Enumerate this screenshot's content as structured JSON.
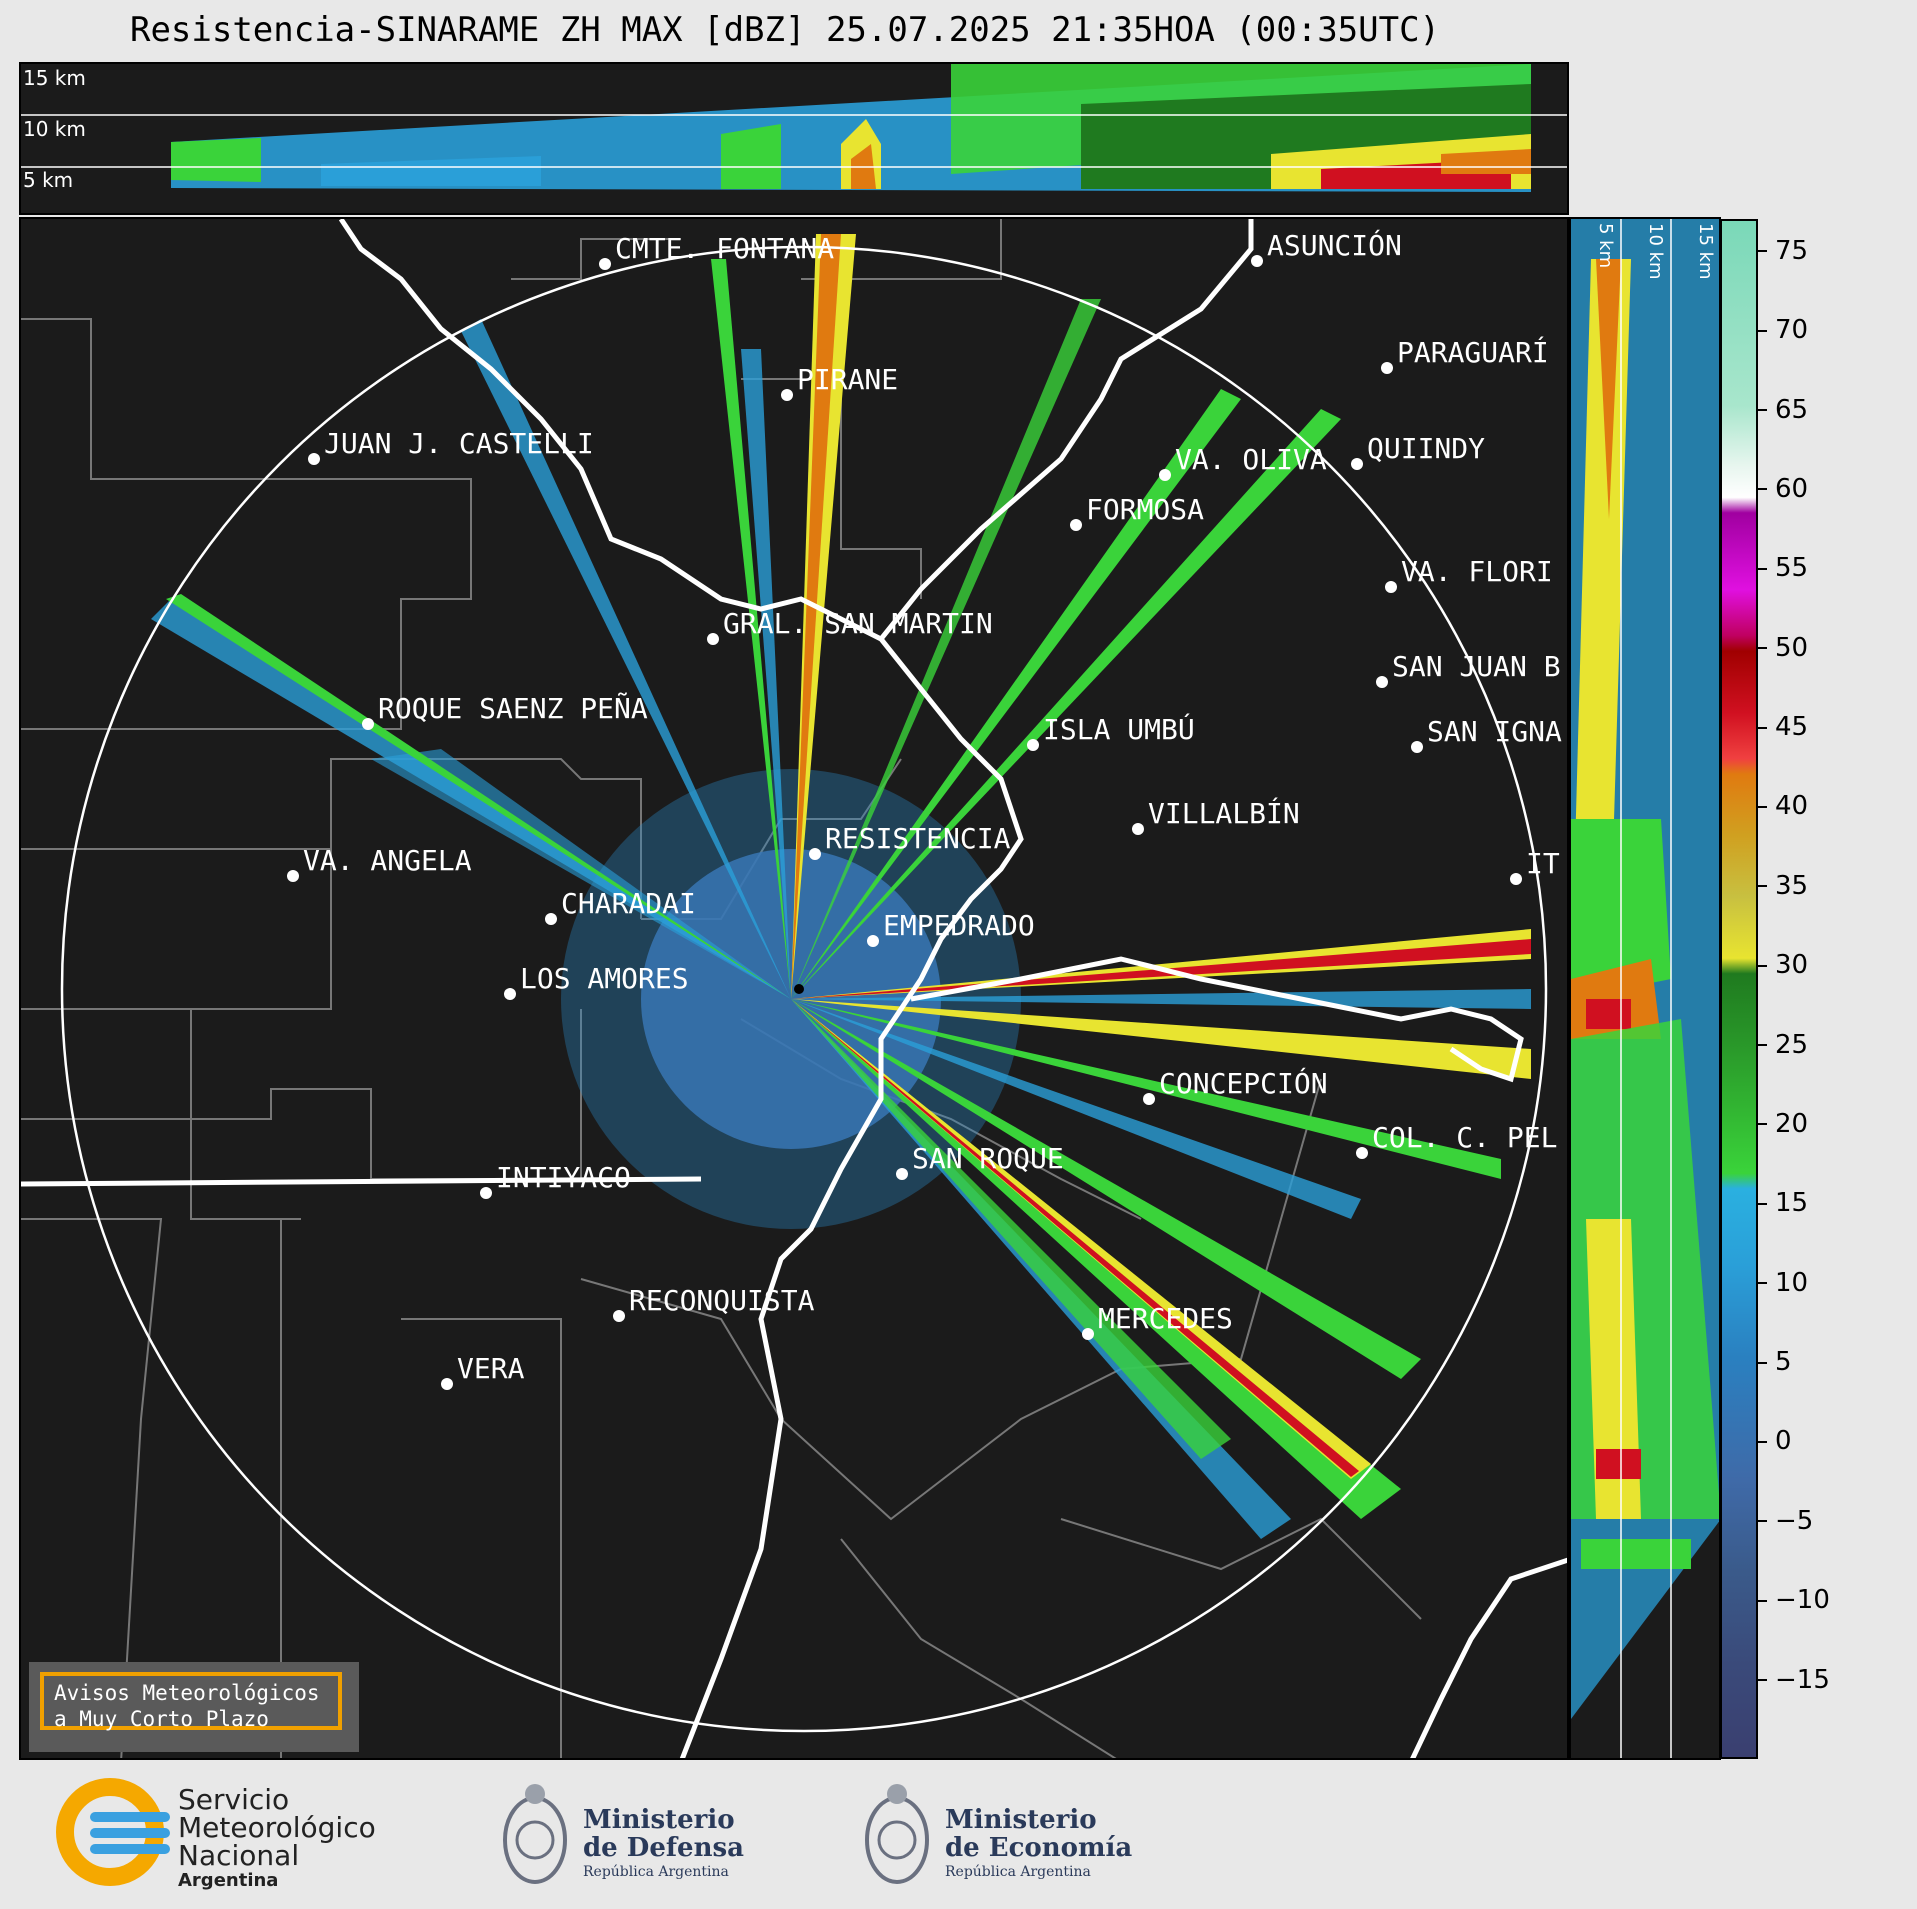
{
  "title": "Resistencia-SINARAME ZH MAX [dBZ] 25.07.2025 21:35HOA (00:35UTC)",
  "top_panel": {
    "height_labels": [
      "15 km",
      "10 km",
      "5 km"
    ]
  },
  "side_panel": {
    "height_labels": [
      "5 km",
      "10 km",
      "15 km"
    ]
  },
  "colorbar": {
    "unit": "dBZ",
    "ticks": [
      "75",
      "70",
      "65",
      "60",
      "55",
      "50",
      "45",
      "40",
      "35",
      "30",
      "25",
      "20",
      "15",
      "10",
      "5",
      "0",
      "−5",
      "−10",
      "−15"
    ],
    "range": [
      -20,
      77
    ],
    "colors": {
      "low": "#3a3f70",
      "blue": "#2a9fd8",
      "green": "#3ad33a",
      "dark_green": "#1f7a1f",
      "yellow": "#e8e430",
      "orange": "#e07a10",
      "red": "#d01020",
      "magenta": "#e010e0",
      "white": "#ffffff",
      "teal": "#7ad8b8"
    }
  },
  "places": [
    {
      "name": "CMTE. FONTANA"
    },
    {
      "name": "ASUNCIÓN"
    },
    {
      "name": "PARAGUARÍ"
    },
    {
      "name": "PIRANE"
    },
    {
      "name": "JUAN J. CASTELLI"
    },
    {
      "name": "VA. OLIVA"
    },
    {
      "name": "QUIINDY"
    },
    {
      "name": "FORMOSA"
    },
    {
      "name": "VA. FLORI"
    },
    {
      "name": "GRAL. SAN MARTIN"
    },
    {
      "name": "SAN JUAN B"
    },
    {
      "name": "ROQUE SAENZ PEÑA"
    },
    {
      "name": "SAN IGNA"
    },
    {
      "name": "ISLA UMBÚ"
    },
    {
      "name": "VILLALBÍN"
    },
    {
      "name": "RESISTENCIA"
    },
    {
      "name": "VA. ANGELA"
    },
    {
      "name": "CHARADAI"
    },
    {
      "name": "IT"
    },
    {
      "name": "EMPEDRADO"
    },
    {
      "name": "LOS AMORES"
    },
    {
      "name": "CONCEPCIÓN"
    },
    {
      "name": "COL. C. PEL"
    },
    {
      "name": "SAN ROQUE"
    },
    {
      "name": "INTIYACO"
    },
    {
      "name": "RECONQUISTA"
    },
    {
      "name": "MERCEDES"
    },
    {
      "name": "VERA"
    }
  ],
  "aviso": {
    "line1": "Avisos Meteorológicos",
    "line2": "a Muy Corto Plazo"
  },
  "logos": {
    "smn": {
      "line1": "Servicio",
      "line2": "Meteorológico",
      "line3": "Nacional",
      "line4": "Argentina"
    },
    "defensa": {
      "line1": "Ministerio",
      "line2": "de Defensa",
      "line3": "República Argentina"
    },
    "economia": {
      "line1": "Ministerio",
      "line2": "de Economía",
      "line3": "República Argentina"
    }
  }
}
